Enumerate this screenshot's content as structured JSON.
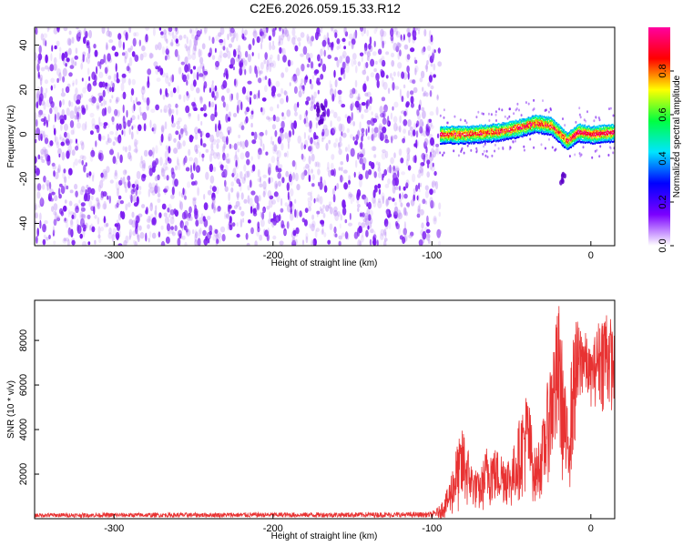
{
  "figure_title": "C2E6.2026.059.15.33.R12",
  "chart_data": [
    {
      "type": "heatmap",
      "title": "C2E6.2026.059.15.33.R12",
      "xlabel": "Height of straight line (km)",
      "ylabel": "Frequency (Hz)",
      "xlim": [
        -350,
        15
      ],
      "ylim": [
        -50,
        48
      ],
      "xticks": [
        -300,
        -200,
        -100,
        0
      ],
      "xtick_labels": [
        "-300",
        "-200",
        "-100",
        "0"
      ],
      "yticks": [
        -40,
        -20,
        0,
        20,
        40
      ],
      "ytick_labels": [
        "-40",
        "-20",
        "0",
        "20",
        "40"
      ],
      "colorbar": {
        "label": "Normalized spectral amplitude",
        "range": [
          0,
          1
        ],
        "ticks": [
          0.0,
          0.2,
          0.4,
          0.6,
          0.8
        ],
        "tick_labels": [
          "0.0",
          "0.2",
          "0.4",
          "0.6",
          "0.8"
        ],
        "colormap": [
          "#ffffff",
          "#7b00ff",
          "#0000ff",
          "#00e5ff",
          "#00ff40",
          "#ffff00",
          "#ff0000",
          "#ff00a0"
        ]
      },
      "regions": [
        {
          "name": "scattered noise",
          "x_range": [
            -350,
            -95
          ],
          "freq_range": [
            -50,
            48
          ],
          "amplitude_range": [
            0.05,
            0.2
          ]
        },
        {
          "name": "coherent signal band",
          "x_range": [
            -95,
            15
          ],
          "freq_center_hz": 1,
          "freq_halfwidth_hz": 4,
          "amplitude_range": [
            0.2,
            1.0
          ]
        }
      ],
      "signal_band_centerline": [
        {
          "x": -95,
          "freq": 0
        },
        {
          "x": -80,
          "freq": 0
        },
        {
          "x": -60,
          "freq": 1
        },
        {
          "x": -45,
          "freq": 3
        },
        {
          "x": -35,
          "freq": 5
        },
        {
          "x": -25,
          "freq": 4
        },
        {
          "x": -15,
          "freq": -3
        },
        {
          "x": -8,
          "freq": 1
        },
        {
          "x": 0,
          "freq": 0
        },
        {
          "x": 15,
          "freq": 1
        }
      ],
      "features": [
        {
          "x": -170,
          "freq": 10,
          "note": "dark streak"
        },
        {
          "x": -18,
          "freq": -20,
          "note": "isolated blob"
        }
      ]
    },
    {
      "type": "line",
      "xlabel": "Height of straight line (km)",
      "ylabel": "SNR (10 * v/v)",
      "xlim": [
        -350,
        15
      ],
      "ylim": [
        0,
        9800
      ],
      "xticks": [
        -300,
        -200,
        -100,
        0
      ],
      "xtick_labels": [
        "-300",
        "-200",
        "-100",
        "0"
      ],
      "yticks": [
        2000,
        4000,
        6000,
        8000
      ],
      "ytick_labels": [
        "2000",
        "4000",
        "6000",
        "8000"
      ],
      "series": [
        {
          "name": "SNR",
          "color": "#e83232",
          "envelope": [
            {
              "x": -350,
              "low": 0,
              "high": 250
            },
            {
              "x": -100,
              "low": 0,
              "high": 300
            },
            {
              "x": -95,
              "low": 0,
              "high": 600
            },
            {
              "x": -90,
              "low": 0,
              "high": 1400
            },
            {
              "x": -85,
              "low": 100,
              "high": 3200
            },
            {
              "x": -80,
              "low": 200,
              "high": 4200
            },
            {
              "x": -75,
              "low": 500,
              "high": 2500
            },
            {
              "x": -70,
              "low": 200,
              "high": 2000
            },
            {
              "x": -65,
              "low": 400,
              "high": 3500
            },
            {
              "x": -60,
              "low": 500,
              "high": 3200
            },
            {
              "x": -55,
              "low": 600,
              "high": 3000
            },
            {
              "x": -50,
              "low": 400,
              "high": 2800
            },
            {
              "x": -45,
              "low": 800,
              "high": 4500
            },
            {
              "x": -40,
              "low": 1000,
              "high": 6000
            },
            {
              "x": -35,
              "low": 600,
              "high": 3000
            },
            {
              "x": -30,
              "low": 1000,
              "high": 4500
            },
            {
              "x": -25,
              "low": 2000,
              "high": 7500
            },
            {
              "x": -20,
              "low": 2500,
              "high": 9800
            },
            {
              "x": -15,
              "low": 300,
              "high": 5000
            },
            {
              "x": -10,
              "low": 3000,
              "high": 9000
            },
            {
              "x": -5,
              "low": 5500,
              "high": 8800
            },
            {
              "x": 0,
              "low": 5000,
              "high": 7500
            },
            {
              "x": 5,
              "low": 5000,
              "high": 9000
            },
            {
              "x": 10,
              "low": 4500,
              "high": 9800
            },
            {
              "x": 15,
              "low": 5000,
              "high": 8200
            }
          ]
        }
      ]
    }
  ]
}
